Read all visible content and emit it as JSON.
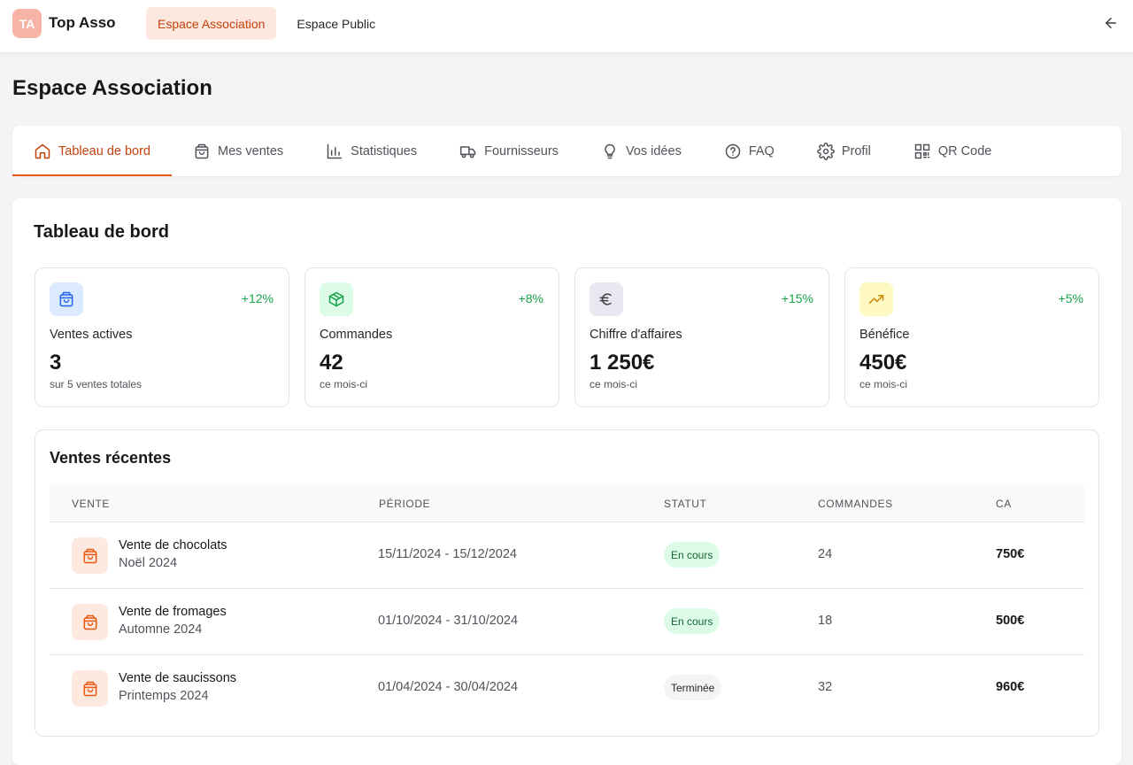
{
  "app": {
    "logo_initials": "TA",
    "brand_name": "Top Asso",
    "nav": [
      "Espace Association",
      "Espace Public"
    ],
    "accent": "#ea580c"
  },
  "page": {
    "title": "Espace Association"
  },
  "tabs": [
    {
      "label": "Tableau de bord",
      "icon": "home-icon"
    },
    {
      "label": "Mes ventes",
      "icon": "shopping-bag-icon"
    },
    {
      "label": "Statistiques",
      "icon": "bar-chart-icon"
    },
    {
      "label": "Fournisseurs",
      "icon": "truck-icon"
    },
    {
      "label": "Vos idées",
      "icon": "lightbulb-icon"
    },
    {
      "label": "FAQ",
      "icon": "help-circle-icon"
    },
    {
      "label": "Profil",
      "icon": "gear-icon"
    },
    {
      "label": "QR Code",
      "icon": "qr-code-icon"
    }
  ],
  "dashboard": {
    "title": "Tableau de bord",
    "stats": [
      {
        "label": "Ventes actives",
        "value": "3",
        "sub": "sur 5 ventes totales",
        "change": "+12%",
        "icon": "shopping-bag-icon"
      },
      {
        "label": "Commandes",
        "value": "42",
        "sub": "ce mois-ci",
        "change": "+8%",
        "icon": "package-icon"
      },
      {
        "label": "Chiffre d'affaires",
        "value": "1 250€",
        "sub": "ce mois-ci",
        "change": "+15%",
        "icon": "euro-icon"
      },
      {
        "label": "Bénéfice",
        "value": "450€",
        "sub": "ce mois-ci",
        "change": "+5%",
        "icon": "trending-up-icon"
      }
    ],
    "recent": {
      "title": "Ventes récentes",
      "columns": [
        "VENTE",
        "PÉRIODE",
        "STATUT",
        "COMMANDES",
        "CA"
      ],
      "rows": [
        {
          "name": "Vente de chocolats",
          "season": "Noël 2024",
          "period": "15/11/2024 - 15/12/2024",
          "status": "En cours",
          "orders": "24",
          "ca": "750€"
        },
        {
          "name": "Vente de fromages",
          "season": "Automne 2024",
          "period": "01/10/2024 - 31/10/2024",
          "status": "En cours",
          "orders": "18",
          "ca": "500€"
        },
        {
          "name": "Vente de saucissons",
          "season": "Printemps 2024",
          "period": "01/04/2024 - 30/04/2024",
          "status": "Terminée",
          "orders": "32",
          "ca": "960€"
        }
      ]
    }
  }
}
